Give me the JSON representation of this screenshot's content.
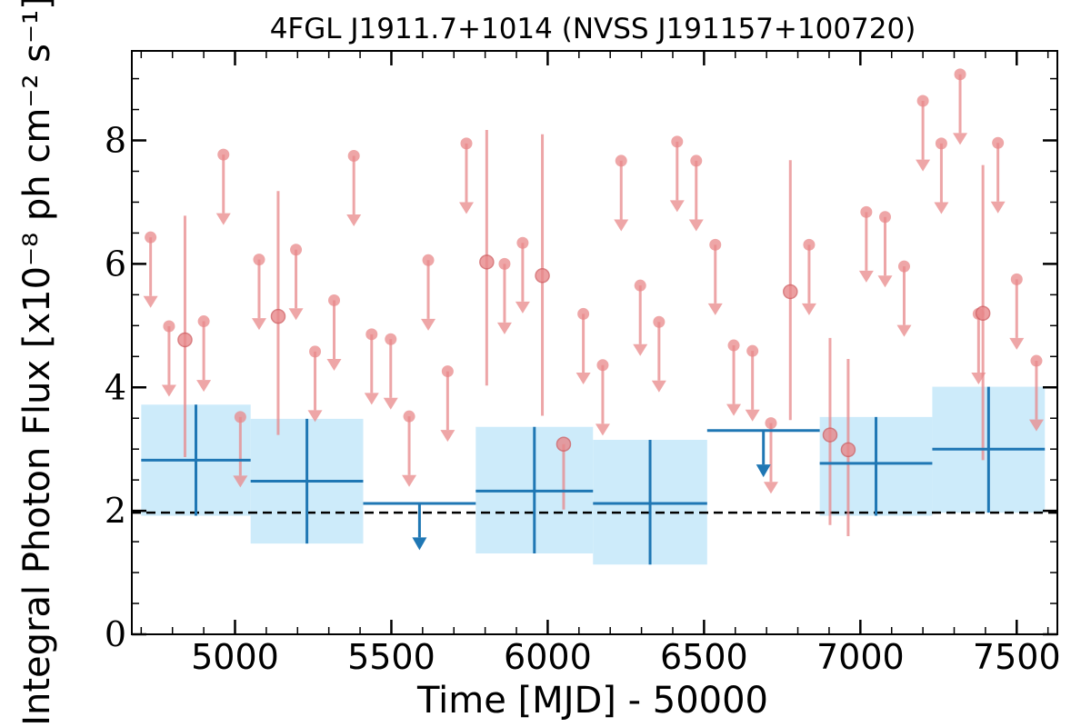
{
  "chart_data": {
    "type": "scatter",
    "title": "4FGL J1911.7+1014 (NVSS J191157+100720)",
    "xlabel": "Time [MJD] - 50000",
    "ylabel": "Integral Photon Flux [x10⁻⁸ ph cm⁻² s⁻¹]",
    "xlim": [
      4670,
      7630
    ],
    "ylim": [
      0,
      9.45
    ],
    "xticks": [
      5000,
      5500,
      6000,
      6500,
      7000,
      7500
    ],
    "yticks": [
      0,
      2,
      4,
      6,
      8
    ],
    "reference_level": 1.97,
    "colors": {
      "short_bin": "#e8888a",
      "long_bin": "#1f77b4",
      "band": "#cdebfa",
      "reference_line": "#000000"
    },
    "long_bins": [
      {
        "x0": 4700,
        "x1": 5050,
        "y": 2.82,
        "ylo": 1.92,
        "yhi": 3.72,
        "band_lo": 1.92,
        "band_hi": 3.72
      },
      {
        "x0": 5050,
        "x1": 5410,
        "y": 2.48,
        "ylo": 1.47,
        "yhi": 3.49,
        "band_lo": 1.47,
        "band_hi": 3.49
      },
      {
        "x0": 5410,
        "x1": 5770,
        "y": 2.12,
        "upper_limit": true
      },
      {
        "x0": 5770,
        "x1": 6145,
        "y": 2.32,
        "ylo": 1.31,
        "yhi": 3.36,
        "band_lo": 1.31,
        "band_hi": 3.36
      },
      {
        "x0": 6145,
        "x1": 6510,
        "y": 2.12,
        "ylo": 1.13,
        "yhi": 3.15,
        "band_lo": 1.13,
        "band_hi": 3.15
      },
      {
        "x0": 6510,
        "x1": 6870,
        "y": 3.3,
        "upper_limit": true
      },
      {
        "x0": 6870,
        "x1": 7230,
        "y": 2.77,
        "ylo": 1.92,
        "yhi": 3.52,
        "band_lo": 1.92,
        "band_hi": 3.52
      },
      {
        "x0": 7230,
        "x1": 7590,
        "y": 3.0,
        "ylo": 1.97,
        "yhi": 4.01,
        "band_lo": 1.97,
        "band_hi": 4.01
      }
    ],
    "short_bin_upper_limits": [
      {
        "x": 4730,
        "y": 6.43
      },
      {
        "x": 4789,
        "y": 4.99
      },
      {
        "x": 4900,
        "y": 5.07
      },
      {
        "x": 4963,
        "y": 7.77
      },
      {
        "x": 5017,
        "y": 3.52
      },
      {
        "x": 5077,
        "y": 6.07
      },
      {
        "x": 5195,
        "y": 6.23
      },
      {
        "x": 5256,
        "y": 4.58
      },
      {
        "x": 5317,
        "y": 5.41
      },
      {
        "x": 5380,
        "y": 7.75
      },
      {
        "x": 5437,
        "y": 4.86
      },
      {
        "x": 5498,
        "y": 4.78
      },
      {
        "x": 5557,
        "y": 3.53
      },
      {
        "x": 5618,
        "y": 6.06
      },
      {
        "x": 5680,
        "y": 4.26
      },
      {
        "x": 5740,
        "y": 7.95
      },
      {
        "x": 5862,
        "y": 6.0
      },
      {
        "x": 5920,
        "y": 6.34
      },
      {
        "x": 6114,
        "y": 5.19
      },
      {
        "x": 6176,
        "y": 4.36
      },
      {
        "x": 6235,
        "y": 7.67
      },
      {
        "x": 6296,
        "y": 5.65
      },
      {
        "x": 6356,
        "y": 5.06
      },
      {
        "x": 6414,
        "y": 7.98
      },
      {
        "x": 6475,
        "y": 7.67
      },
      {
        "x": 6536,
        "y": 6.31
      },
      {
        "x": 6595,
        "y": 4.68
      },
      {
        "x": 6655,
        "y": 4.59
      },
      {
        "x": 6714,
        "y": 3.42
      },
      {
        "x": 6836,
        "y": 6.31
      },
      {
        "x": 7019,
        "y": 6.84
      },
      {
        "x": 7079,
        "y": 6.76
      },
      {
        "x": 7140,
        "y": 5.96
      },
      {
        "x": 7200,
        "y": 8.64
      },
      {
        "x": 7259,
        "y": 7.95
      },
      {
        "x": 7319,
        "y": 9.07
      },
      {
        "x": 7378,
        "y": 5.19
      },
      {
        "x": 7440,
        "y": 7.96
      },
      {
        "x": 7500,
        "y": 5.75
      },
      {
        "x": 7563,
        "y": 4.43
      }
    ],
    "short_bin_detections": [
      {
        "x": 4840,
        "y": 4.77,
        "ylo": 2.87,
        "yhi": 6.78
      },
      {
        "x": 5138,
        "y": 5.15,
        "ylo": 3.23,
        "yhi": 7.18
      },
      {
        "x": 5805,
        "y": 6.03,
        "ylo": 4.03,
        "yhi": 8.17
      },
      {
        "x": 5983,
        "y": 5.81,
        "ylo": 3.54,
        "yhi": 8.1
      },
      {
        "x": 6051,
        "y": 3.08,
        "ylo": 2.02,
        "yhi": 3.08
      },
      {
        "x": 6776,
        "y": 5.55,
        "ylo": 3.47,
        "yhi": 7.68
      },
      {
        "x": 6903,
        "y": 3.23,
        "ylo": 1.77,
        "yhi": 4.8
      },
      {
        "x": 6961,
        "y": 2.99,
        "ylo": 1.59,
        "yhi": 4.46
      },
      {
        "x": 7392,
        "y": 5.2,
        "ylo": 2.82,
        "yhi": 7.6
      }
    ]
  }
}
